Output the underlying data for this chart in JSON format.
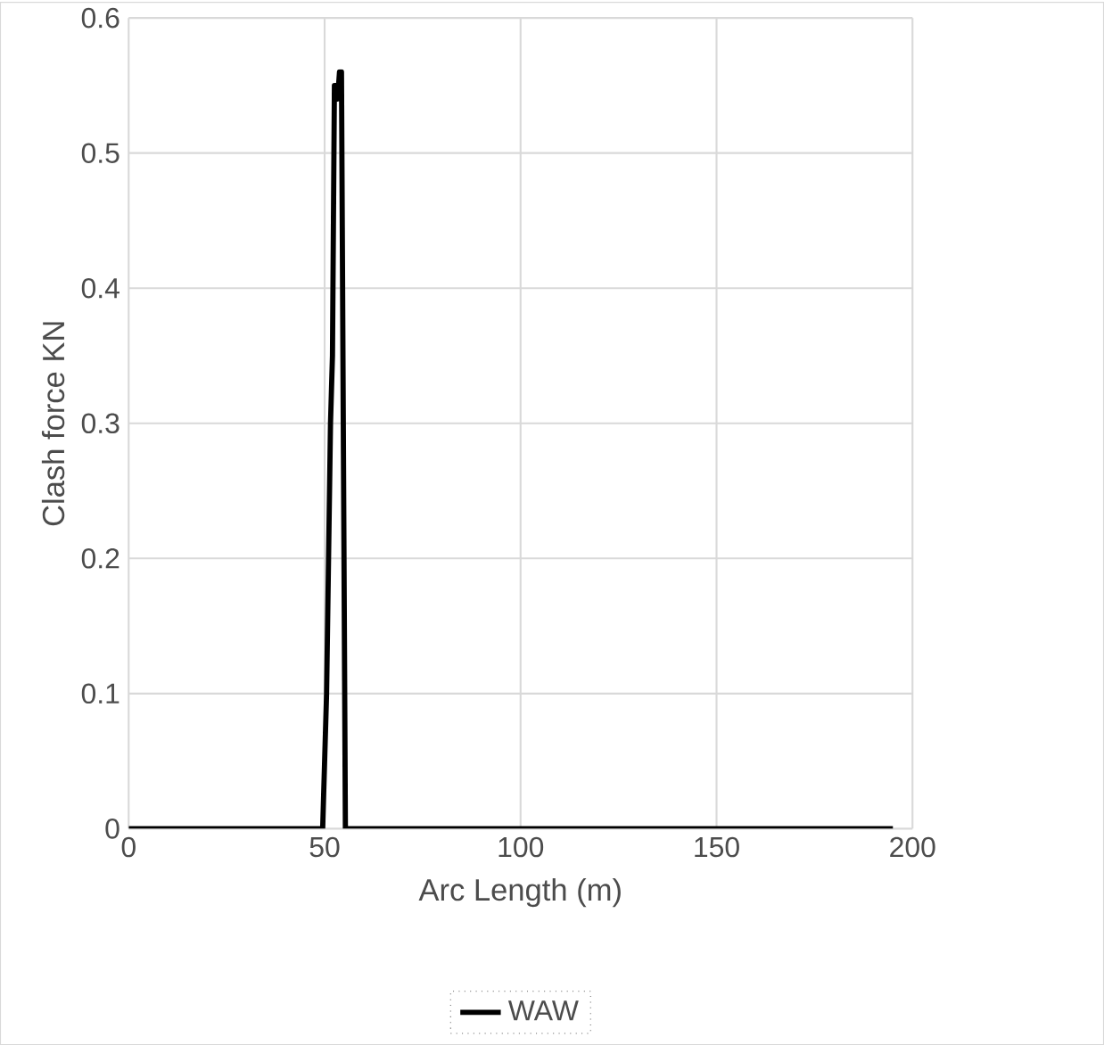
{
  "chart_data": {
    "type": "line",
    "xlabel": "Arc Length (m)",
    "ylabel": "Clash force KN",
    "xlim": [
      0,
      200
    ],
    "ylim": [
      0,
      0.6
    ],
    "xticks": [
      0,
      50,
      100,
      150,
      200
    ],
    "yticks": [
      0,
      0.1,
      0.2,
      0.3,
      0.4,
      0.5,
      0.6
    ],
    "grid": true,
    "legend": "bottom",
    "series": [
      {
        "name": "WAW",
        "color": "#000000",
        "x": [
          0,
          49.5,
          50.5,
          51.5,
          52,
          52.5,
          53,
          53.3,
          53.8,
          54.3,
          55.3,
          195
        ],
        "values": [
          0,
          0,
          0.1,
          0.3,
          0.35,
          0.55,
          0.55,
          0.54,
          0.56,
          0.56,
          0,
          0
        ]
      }
    ]
  }
}
